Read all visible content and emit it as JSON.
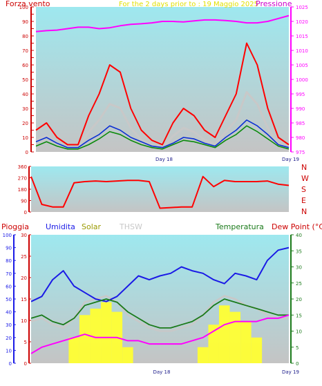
{
  "header": {
    "left_label": "Forza vento",
    "center_label": "For the 2 days prior to : 19 Maggio 2025",
    "right_label": "Pressione"
  },
  "colors": {
    "plot_top": "#9ee8ef",
    "plot_bottom": "#c4c4c4",
    "wind_gust": "#ff0000",
    "wind_avg_blue": "#0a2fd4",
    "wind_avg_green": "#0b8a0b",
    "wind_grey": "#c8c8c8",
    "pressure": "#ff00ff",
    "axis_left": "#cc0000",
    "axis_right": "#ff00ff",
    "humidity": "#1a1ae6",
    "temperature": "#1a7a1a",
    "dew_point": "#ff00ff",
    "solar": "#ffff33",
    "thsw": "#c8c8c8"
  },
  "chart_data": [
    {
      "type": "line",
      "title": "For the 2 days prior to : 19 Maggio 2025",
      "x_ticks": [
        "Day 18",
        "Day 19"
      ],
      "ylabel_left": "Forza vento",
      "ylabel_right": "Pressione",
      "yticks_left": [
        0,
        5,
        10,
        15,
        20,
        25,
        30,
        35,
        40,
        45,
        50,
        55,
        60,
        65,
        70,
        75,
        80,
        85,
        90,
        95,
        100
      ],
      "ylim_left": [
        0,
        100
      ],
      "yticks_right": [
        975,
        980,
        985,
        990,
        995,
        1000,
        1005,
        1010,
        1015,
        1020,
        1025
      ],
      "ylim_right": [
        975,
        1025
      ],
      "x_hours": [
        0,
        2,
        4,
        6,
        8,
        10,
        12,
        14,
        16,
        18,
        20,
        22,
        24,
        26,
        28,
        30,
        32,
        34,
        36,
        38,
        40,
        42,
        44,
        46,
        48
      ],
      "series": [
        {
          "name": "Forza vento",
          "axis": "left",
          "values": [
            15,
            20,
            10,
            5,
            5,
            25,
            40,
            60,
            55,
            30,
            15,
            8,
            5,
            20,
            30,
            25,
            15,
            10,
            25,
            40,
            75,
            60,
            30,
            10,
            5
          ]
        },
        {
          "axis": "left",
          "values": [
            7,
            10,
            6,
            3,
            3,
            8,
            12,
            18,
            15,
            10,
            7,
            4,
            3,
            6,
            10,
            9,
            6,
            4,
            10,
            15,
            22,
            18,
            12,
            5,
            3
          ]
        },
        {
          "axis": "left",
          "values": [
            4,
            7,
            4,
            2,
            2,
            5,
            9,
            14,
            12,
            8,
            5,
            3,
            2,
            5,
            8,
            7,
            5,
            3,
            8,
            12,
            18,
            14,
            9,
            4,
            2
          ]
        },
        {
          "name": "Pressione",
          "axis": "right",
          "values": [
            1016.5,
            1016.8,
            1017,
            1017.5,
            1018,
            1018,
            1017.5,
            1017.8,
            1018.5,
            1019,
            1019.2,
            1019.5,
            1020,
            1020,
            1019.8,
            1020.2,
            1020.5,
            1020.5,
            1020.3,
            1020,
            1019.5,
            1019.5,
            1020,
            1021,
            1022
          ]
        }
      ]
    },
    {
      "type": "line",
      "x_ticks": [
        "Day 18",
        "Day 19"
      ],
      "yticks_left": [
        0,
        90,
        180,
        270,
        360
      ],
      "ylim_left": [
        0,
        360
      ],
      "compass_labels": [
        "N",
        "W",
        "S",
        "E",
        "N"
      ],
      "x_hours": [
        0,
        2,
        4,
        6,
        8,
        10,
        12,
        14,
        16,
        18,
        20,
        22,
        24,
        26,
        28,
        30,
        32,
        34,
        36,
        38,
        40,
        42,
        44,
        46,
        48
      ],
      "series": [
        {
          "values": [
            280,
            60,
            40,
            40,
            230,
            240,
            245,
            240,
            245,
            250,
            250,
            240,
            30,
            35,
            40,
            40,
            280,
            200,
            250,
            240,
            240,
            240,
            245,
            220,
            210
          ]
        }
      ]
    },
    {
      "type": "line",
      "x_ticks": [
        "Day 18",
        "Day 19"
      ],
      "legend": [
        "Pioggia",
        "Umidita",
        "Solar",
        "THSW",
        "Temperatura",
        "Dew Point (°C)"
      ],
      "yticks_humidity": [
        0,
        10,
        20,
        30,
        40,
        50,
        60,
        70,
        80,
        90,
        100
      ],
      "ylim_humidity": [
        0,
        100
      ],
      "yticks_rain": [
        0,
        5,
        10,
        15,
        20,
        25,
        30
      ],
      "ylim_rain": [
        0,
        30
      ],
      "yticks_temp": [
        0,
        5,
        10,
        15,
        20,
        25,
        30,
        35,
        40
      ],
      "ylim_temp": [
        0,
        40
      ],
      "x_hours": [
        0,
        2,
        4,
        6,
        8,
        10,
        12,
        14,
        16,
        18,
        20,
        22,
        24,
        26,
        28,
        30,
        32,
        34,
        36,
        38,
        40,
        42,
        44,
        46,
        48
      ],
      "series": [
        {
          "name": "Umidita",
          "axis": "humidity",
          "values": [
            48,
            52,
            65,
            72,
            60,
            55,
            50,
            48,
            52,
            60,
            68,
            65,
            68,
            70,
            75,
            72,
            70,
            65,
            62,
            70,
            68,
            65,
            80,
            88,
            90
          ]
        },
        {
          "name": "Temperatura",
          "axis": "temp",
          "values": [
            14,
            15,
            13,
            12,
            14,
            18,
            19,
            20,
            19,
            16,
            14,
            12,
            11,
            11,
            12,
            13,
            15,
            18,
            20,
            19,
            18,
            17,
            16,
            15,
            15
          ]
        },
        {
          "name": "Dew Point (°C)",
          "axis": "temp",
          "values": [
            3,
            5,
            6,
            7,
            8,
            9,
            8,
            8,
            8,
            7,
            7,
            6,
            6,
            6,
            6,
            7,
            8,
            10,
            12,
            13,
            13,
            13,
            14,
            14,
            15
          ]
        },
        {
          "name": "Solar",
          "axis": "temp",
          "values": [
            0,
            0,
            0,
            0,
            8,
            15,
            17,
            19,
            16,
            5,
            0,
            0,
            0,
            0,
            0,
            0,
            5,
            12,
            18,
            16,
            13,
            8,
            0,
            0,
            0
          ]
        },
        {
          "name": "THSW",
          "axis": "temp",
          "values": [
            13,
            14,
            12,
            11,
            14,
            19,
            20,
            21,
            19,
            15,
            13,
            11,
            10,
            10,
            11,
            12,
            15,
            19,
            21,
            20,
            18,
            17,
            15,
            14,
            14
          ]
        }
      ]
    }
  ]
}
